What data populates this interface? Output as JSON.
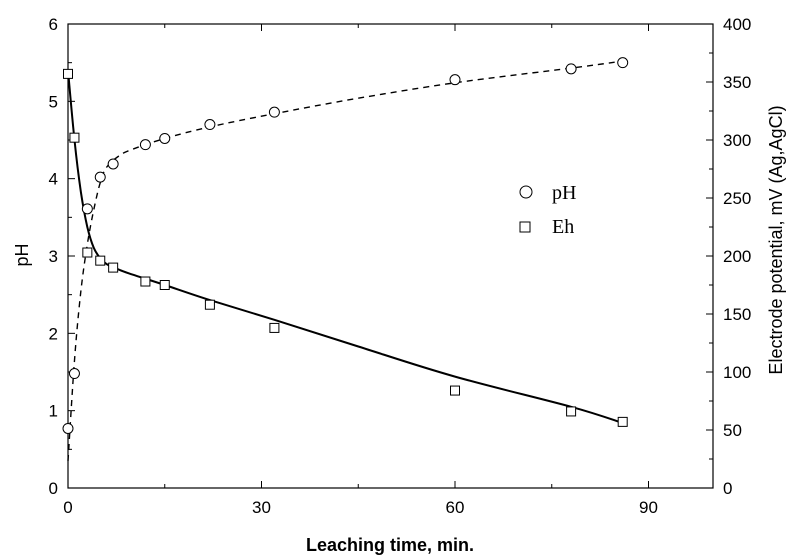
{
  "chart_data": {
    "type": "scatter",
    "title": "",
    "xlabel": "Leaching time, min.",
    "ylabel": "pH",
    "y2label": "Electrode potential, mV (Ag,AgCl)",
    "xlim": [
      0,
      100
    ],
    "ylim": [
      0,
      6
    ],
    "y2lim": [
      0,
      400
    ],
    "x_ticks": [
      "0",
      "30",
      "60",
      "90"
    ],
    "y_ticks": [
      "0",
      "1",
      "2",
      "3",
      "4",
      "5",
      "6"
    ],
    "y2_ticks": [
      "0",
      "50",
      "100",
      "150",
      "200",
      "250",
      "300",
      "350",
      "400"
    ],
    "grid": false,
    "legend_position": "right-middle",
    "series": [
      {
        "name": "pH",
        "axis": "left",
        "marker": "circle",
        "x": [
          0,
          1,
          3,
          5,
          7,
          12,
          15,
          22,
          32,
          60,
          78,
          86
        ],
        "y": [
          0.77,
          1.48,
          3.61,
          4.02,
          4.19,
          4.44,
          4.52,
          4.7,
          4.86,
          5.28,
          5.42,
          5.5
        ],
        "fit": {
          "style": "dashed",
          "x": [
            0,
            1,
            2,
            3,
            4,
            5,
            6,
            8,
            10,
            15,
            22,
            32,
            45,
            60,
            78,
            86
          ],
          "y": [
            0.35,
            1.65,
            2.55,
            3.15,
            3.6,
            3.95,
            4.15,
            4.3,
            4.38,
            4.52,
            4.67,
            4.84,
            5.04,
            5.24,
            5.43,
            5.52
          ]
        }
      },
      {
        "name": "Eh",
        "axis": "right",
        "marker": "square",
        "x": [
          0,
          1,
          3,
          5,
          7,
          12,
          15,
          22,
          32,
          60,
          78,
          86
        ],
        "y": [
          357,
          302,
          203,
          196,
          190,
          178,
          175,
          158,
          138,
          84,
          66,
          57
        ],
        "fit": {
          "style": "solid",
          "x": [
            0,
            1,
            2,
            3,
            4,
            5,
            6,
            8,
            10,
            15,
            22,
            32,
            45,
            60,
            78,
            86
          ],
          "y": [
            360,
            300,
            255,
            225,
            207,
            198,
            193,
            188,
            184,
            175,
            162,
            145,
            122,
            96,
            70,
            56
          ]
        }
      }
    ]
  }
}
